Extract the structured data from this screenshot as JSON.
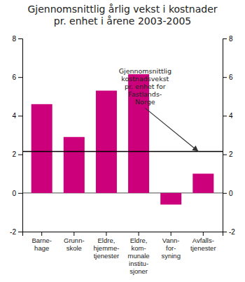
{
  "chart_data": {
    "type": "bar",
    "title": "Gjennomsnittlig årlig vekst i kostnader\npr. enhet i årene 2003-2005",
    "categories": [
      "Barne-\nhage",
      "Grunn-\nskole",
      "Eldre,\nhjemme-\ntjenester",
      "Eldre,\nkom-\nmunale\ninstitu-\nsjoner",
      "Vann-\nfor-\nsyning",
      "Avfalls-\ntjenester"
    ],
    "values": [
      4.6,
      2.9,
      5.3,
      6.15,
      -0.6,
      1.0
    ],
    "color": "#cc007a",
    "reference_line": 2.15,
    "annotation": "Gjennomsnittlig\nkostnadsvekst\npr. enhet for\nFastlands-\nNorge",
    "ylim": [
      -2,
      8
    ],
    "yticks": [
      -2,
      0,
      2,
      4,
      6,
      8
    ],
    "y2lim": [
      -2,
      8
    ],
    "y2ticks": [
      -2,
      0,
      2,
      4,
      6,
      8
    ],
    "grid": false
  }
}
